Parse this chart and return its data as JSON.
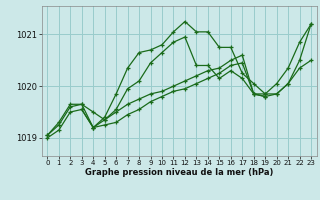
{
  "title": "Graphe pression niveau de la mer (hPa)",
  "bg_color": "#cce8e8",
  "grid_color": "#99cccc",
  "line_color": "#1a6b1a",
  "xlim": [
    -0.5,
    23.5
  ],
  "ylim": [
    1018.65,
    1021.55
  ],
  "yticks": [
    1019,
    1020,
    1021
  ],
  "xticks": [
    0,
    1,
    2,
    3,
    4,
    5,
    6,
    7,
    8,
    9,
    10,
    11,
    12,
    13,
    14,
    15,
    16,
    17,
    18,
    19,
    20,
    21,
    22,
    23
  ],
  "lines": [
    {
      "x": [
        0,
        1,
        2,
        3,
        4,
        5,
        6,
        7,
        8,
        9,
        10,
        11,
        12,
        13,
        14,
        15,
        16,
        17,
        18,
        19,
        20,
        21,
        22,
        23
      ],
      "y": [
        1019.05,
        1019.3,
        1019.65,
        1019.65,
        1019.2,
        1019.4,
        1019.85,
        1020.35,
        1020.65,
        1020.7,
        1020.8,
        1021.05,
        1021.25,
        1021.05,
        1021.05,
        1020.75,
        1020.75,
        1020.25,
        1020.05,
        1019.85,
        1020.05,
        1020.35,
        1020.85,
        1021.2
      ]
    },
    {
      "x": [
        0,
        1,
        2,
        3,
        4,
        5,
        6,
        7,
        8,
        9,
        10,
        11,
        12,
        13,
        14,
        15,
        16,
        17,
        18,
        19
      ],
      "y": [
        1019.05,
        1019.25,
        1019.6,
        1019.65,
        1019.5,
        1019.35,
        1019.55,
        1019.95,
        1020.1,
        1020.45,
        1020.65,
        1020.85,
        1020.95,
        1020.4,
        1020.4,
        1020.15,
        1020.3,
        1020.15,
        1019.85,
        1019.8
      ]
    },
    {
      "x": [
        0,
        1,
        2,
        3,
        4,
        5,
        6,
        7,
        8,
        9,
        10,
        11,
        12,
        13,
        14,
        15,
        16,
        17,
        18,
        19,
        20,
        21,
        22,
        23
      ],
      "y": [
        1019.0,
        1019.15,
        1019.5,
        1019.55,
        1019.2,
        1019.25,
        1019.3,
        1019.45,
        1019.55,
        1019.7,
        1019.8,
        1019.9,
        1019.95,
        1020.05,
        1020.15,
        1020.25,
        1020.4,
        1020.45,
        1019.85,
        1019.85,
        1019.85,
        1020.05,
        1020.35,
        1020.5
      ]
    },
    {
      "x": [
        3,
        4,
        5,
        6,
        7,
        8,
        9,
        10,
        11,
        12,
        13,
        14,
        15,
        16,
        17,
        18,
        19,
        20,
        21,
        22,
        23
      ],
      "y": [
        1019.55,
        1019.2,
        1019.35,
        1019.5,
        1019.65,
        1019.75,
        1019.85,
        1019.9,
        1020.0,
        1020.1,
        1020.2,
        1020.3,
        1020.35,
        1020.5,
        1020.6,
        1019.85,
        1019.8,
        1019.85,
        1020.05,
        1020.5,
        1021.2
      ]
    }
  ]
}
